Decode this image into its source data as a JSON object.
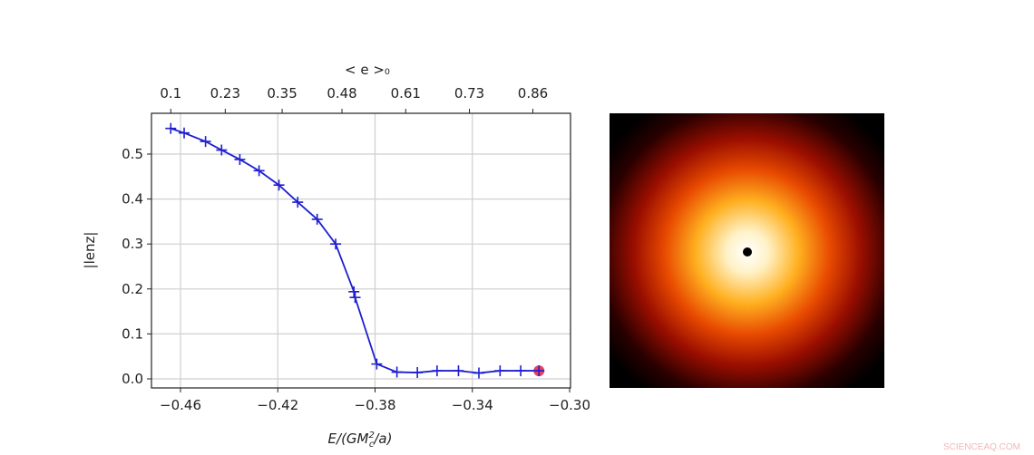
{
  "chart_data": [
    {
      "type": "line",
      "title": "",
      "xlabel": "E/(GM_c^2/a)",
      "xlabel_parts": {
        "pre": "E/(GM",
        "sup": "2",
        "sub": "c",
        "post": "/a)"
      },
      "ylabel": "|lenz|",
      "top_xlabel": "< e >₀",
      "xlim": [
        -0.468,
        -0.3
      ],
      "ylim": [
        -0.02,
        0.59
      ],
      "grid": true,
      "x_ticks": [
        -0.46,
        -0.42,
        -0.38,
        -0.34,
        -0.3
      ],
      "x_tick_labels": [
        "−0.46",
        "−0.42",
        "−0.38",
        "−0.34",
        "−0.30"
      ],
      "y_ticks": [
        0.0,
        0.1,
        0.2,
        0.3,
        0.4,
        0.5
      ],
      "y_tick_labels": [
        "0.0",
        "0.1",
        "0.2",
        "0.3",
        "0.4",
        "0.5"
      ],
      "top_ticks_at_x": [
        -0.464,
        -0.4416,
        -0.4182,
        -0.3936,
        -0.3674,
        -0.3412,
        -0.3151
      ],
      "top_tick_labels": [
        "0.1",
        "0.23",
        "0.35",
        "0.48",
        "0.61",
        "0.73",
        "0.86"
      ],
      "series": [
        {
          "name": "lenz",
          "color": "#1f1fd0",
          "marker": "+",
          "x": [
            -0.464,
            -0.4585,
            -0.4497,
            -0.4431,
            -0.4356,
            -0.4277,
            -0.4195,
            -0.4118,
            -0.4038,
            -0.3962,
            -0.3887,
            -0.3882,
            -0.3793,
            -0.371,
            -0.3626,
            -0.3545,
            -0.3457,
            -0.3373,
            -0.3286,
            -0.3201,
            -0.3126
          ],
          "y": [
            0.557,
            0.547,
            0.528,
            0.509,
            0.488,
            0.463,
            0.431,
            0.393,
            0.355,
            0.3,
            0.194,
            0.181,
            0.033,
            0.015,
            0.014,
            0.018,
            0.018,
            0.013,
            0.018,
            0.018,
            0.018
          ]
        }
      ],
      "highlight": {
        "x": -0.3126,
        "y": 0.018,
        "color": "#e0204a"
      }
    },
    {
      "type": "heatmap",
      "description_colormap": "hot",
      "center_marker_color": "#000000"
    }
  ],
  "watermark": "SCIENCEAQ.COM"
}
